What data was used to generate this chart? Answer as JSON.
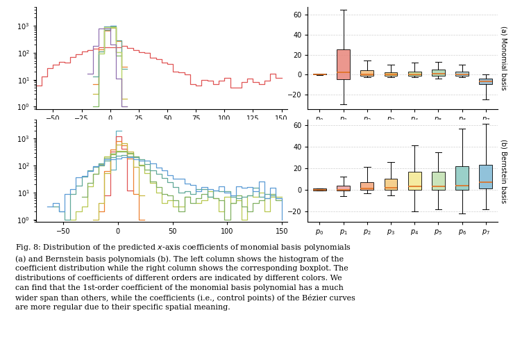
{
  "hist_colors_mono": [
    "#5B9BD5",
    "#E05555",
    "#ED8030",
    "#C8B840",
    "#80B860",
    "#60A898",
    "#B8D870",
    "#9070B0"
  ],
  "hist_colors_bern": [
    "#60B0C0",
    "#E05555",
    "#ED8030",
    "#C8B840",
    "#B8C850",
    "#80B060",
    "#60A898",
    "#5B9BD5"
  ],
  "box_colors_mono": [
    "#888888",
    "#E8857A",
    "#F4BE7A",
    "#F0D070",
    "#C8E098",
    "#A8D4B0",
    "#A8CED4",
    "#8AAFC8"
  ],
  "box_colors_bern": [
    "#808080",
    "#E8A0A0",
    "#F4A57A",
    "#F4C87A",
    "#F4E890",
    "#C0E0B0",
    "#88C8C0",
    "#7EB8D4"
  ],
  "tick_labels": [
    "$p_0$",
    "$p_1$",
    "$p_2$",
    "$p_3$",
    "$p_4$",
    "$p_5$",
    "$p_6$",
    "$p_7$"
  ],
  "mono_box_data": {
    "medians": [
      0,
      2,
      0,
      0,
      0,
      1,
      0,
      -7
    ],
    "q1": [
      0,
      -5,
      -1,
      -1,
      -1,
      -1,
      -1,
      -10
    ],
    "q3": [
      1,
      25,
      4,
      2,
      3,
      5,
      3,
      -4
    ],
    "whislo": [
      -0.5,
      -30,
      -3,
      -3,
      -3,
      -4,
      -3,
      -25
    ],
    "whishi": [
      1,
      65,
      14,
      10,
      12,
      13,
      10,
      0
    ]
  },
  "bern_box_data": {
    "medians": [
      0,
      0,
      1,
      2,
      3,
      3,
      4,
      7
    ],
    "q1": [
      -0.5,
      -1,
      0,
      0,
      0,
      0,
      0,
      1
    ],
    "q3": [
      1,
      4,
      7,
      10,
      17,
      17,
      22,
      23
    ],
    "whislo": [
      -1,
      -6,
      -3,
      -5,
      -20,
      -18,
      -22,
      -18
    ],
    "whishi": [
      1,
      12,
      21,
      26,
      41,
      35,
      57,
      61
    ]
  },
  "label_a": "(a) Monomial basis",
  "label_b": "(b) Bernstein basis"
}
